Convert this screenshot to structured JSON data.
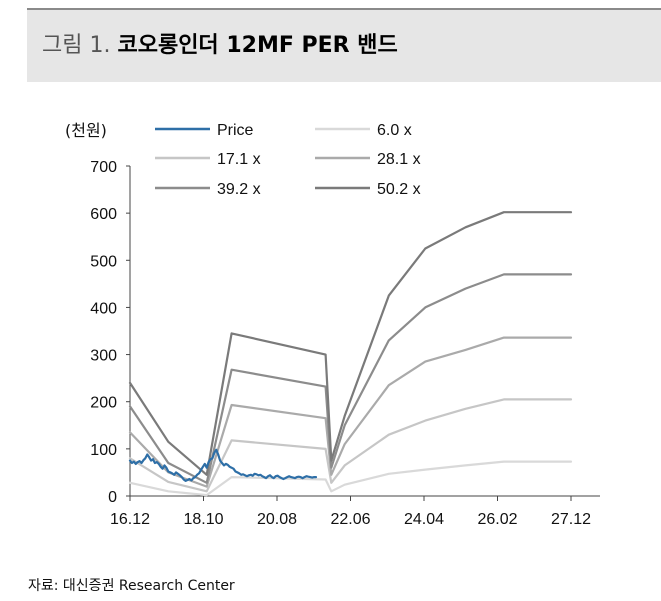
{
  "figure": {
    "label": "그림 1.",
    "title": "코오롱인더 12MF PER 밴드"
  },
  "source": "자료: 대신증권 Research Center",
  "chart_data": {
    "type": "line",
    "unit_label": "(천원)",
    "x_ticks": [
      "16.12",
      "18.10",
      "20.08",
      "22.06",
      "24.04",
      "26.02",
      "27.12"
    ],
    "y_ticks": [
      0,
      100,
      200,
      300,
      400,
      500,
      600,
      700
    ],
    "ylim": [
      0,
      700
    ],
    "legend_position": "top",
    "colors": {
      "price": "#2e6fa7",
      "6.0 x": "#d9d9d9",
      "17.1 x": "#c6c6c6",
      "28.1 x": "#aaaaaa",
      "39.2 x": "#8c8c8c",
      "50.2 x": "#7a7a7a"
    },
    "series": [
      {
        "name": "Price",
        "key": "price",
        "x": [
          0.0,
          0.1,
          0.2,
          0.3,
          0.4,
          0.5,
          0.6,
          0.7,
          0.8,
          0.9,
          1.0,
          1.1,
          1.2,
          1.3,
          1.4,
          1.5,
          1.6,
          1.7,
          1.8,
          1.9,
          2.0,
          2.1,
          2.2,
          2.3,
          2.4,
          2.5,
          2.6,
          2.7,
          2.8,
          2.9,
          3.0,
          3.1,
          3.2,
          3.3,
          3.4,
          3.5,
          3.6,
          3.7,
          3.8,
          3.9,
          4.0,
          4.1,
          4.2,
          4.3,
          4.4,
          4.5,
          4.6,
          4.7,
          4.8,
          4.9,
          5.0,
          5.1,
          5.2,
          5.3,
          5.4,
          5.5,
          5.6,
          5.7,
          5.8,
          5.9,
          6.0,
          6.1,
          6.2,
          6.3,
          6.4,
          6.5,
          6.6,
          6.7,
          6.8,
          6.9,
          7.0,
          7.1,
          7.2,
          7.3,
          7.4,
          7.5,
          7.6,
          7.7,
          7.8,
          7.9,
          8.0,
          8.1,
          8.2,
          8.3,
          8.4,
          8.5,
          8.6,
          8.7,
          8.8,
          8.9,
          9.0,
          9.1,
          9.2,
          9.3,
          9.4,
          9.5,
          9.6,
          9.7
        ],
        "values": [
          75,
          70,
          73,
          68,
          72,
          74,
          70,
          76,
          80,
          88,
          82,
          75,
          78,
          70,
          72,
          68,
          62,
          58,
          65,
          60,
          52,
          50,
          48,
          45,
          50,
          47,
          44,
          40,
          35,
          32,
          34,
          36,
          33,
          38,
          40,
          45,
          48,
          55,
          62,
          68,
          60,
          72,
          78,
          80,
          92,
          98,
          88,
          75,
          70,
          65,
          68,
          66,
          62,
          60,
          58,
          52,
          50,
          48,
          45,
          46,
          44,
          42,
          44,
          45,
          43,
          47,
          46,
          44,
          45,
          42,
          40,
          38,
          42,
          44,
          40,
          38,
          42,
          43,
          40,
          38,
          36,
          38,
          40,
          42,
          40,
          39,
          38,
          40,
          41,
          40,
          38,
          40,
          42,
          41,
          40,
          39,
          40,
          40
        ]
      },
      {
        "name": "6.0 x",
        "key": "6.0 x",
        "x": [
          0,
          2,
          4,
          5.3,
          10.2,
          10.5,
          11.2,
          13.5,
          15.4,
          17.5,
          19.5,
          23
        ],
        "values": [
          28,
          10,
          2,
          40,
          35,
          10,
          24,
          47,
          56,
          65,
          73,
          73
        ]
      },
      {
        "name": "17.1 x",
        "key": "17.1 x",
        "x": [
          0,
          2,
          4,
          5.3,
          10.2,
          10.5,
          11.2,
          13.5,
          15.4,
          17.5,
          19.5,
          23
        ],
        "values": [
          80,
          30,
          10,
          118,
          100,
          28,
          65,
          130,
          160,
          185,
          205,
          205
        ]
      },
      {
        "name": "28.1 x",
        "key": "28.1 x",
        "x": [
          0,
          2,
          4,
          5.3,
          10.2,
          10.5,
          11.2,
          13.5,
          15.4,
          17.5,
          19.5,
          23
        ],
        "values": [
          135,
          50,
          20,
          193,
          165,
          45,
          110,
          235,
          285,
          310,
          336,
          336
        ]
      },
      {
        "name": "39.2 x",
        "key": "39.2 x",
        "x": [
          0,
          2,
          4,
          5.3,
          10.2,
          10.5,
          11.2,
          13.5,
          15.4,
          17.5,
          19.5,
          23
        ],
        "values": [
          190,
          70,
          28,
          268,
          232,
          60,
          150,
          330,
          400,
          440,
          470,
          470
        ]
      },
      {
        "name": "50.2 x",
        "key": "50.2 x",
        "x": [
          0,
          2,
          4,
          5.3,
          10.2,
          10.5,
          11.2,
          13.5,
          15.4,
          17.5,
          19.5,
          23
        ],
        "values": [
          240,
          115,
          45,
          345,
          300,
          75,
          170,
          425,
          525,
          570,
          602,
          602
        ]
      }
    ]
  }
}
